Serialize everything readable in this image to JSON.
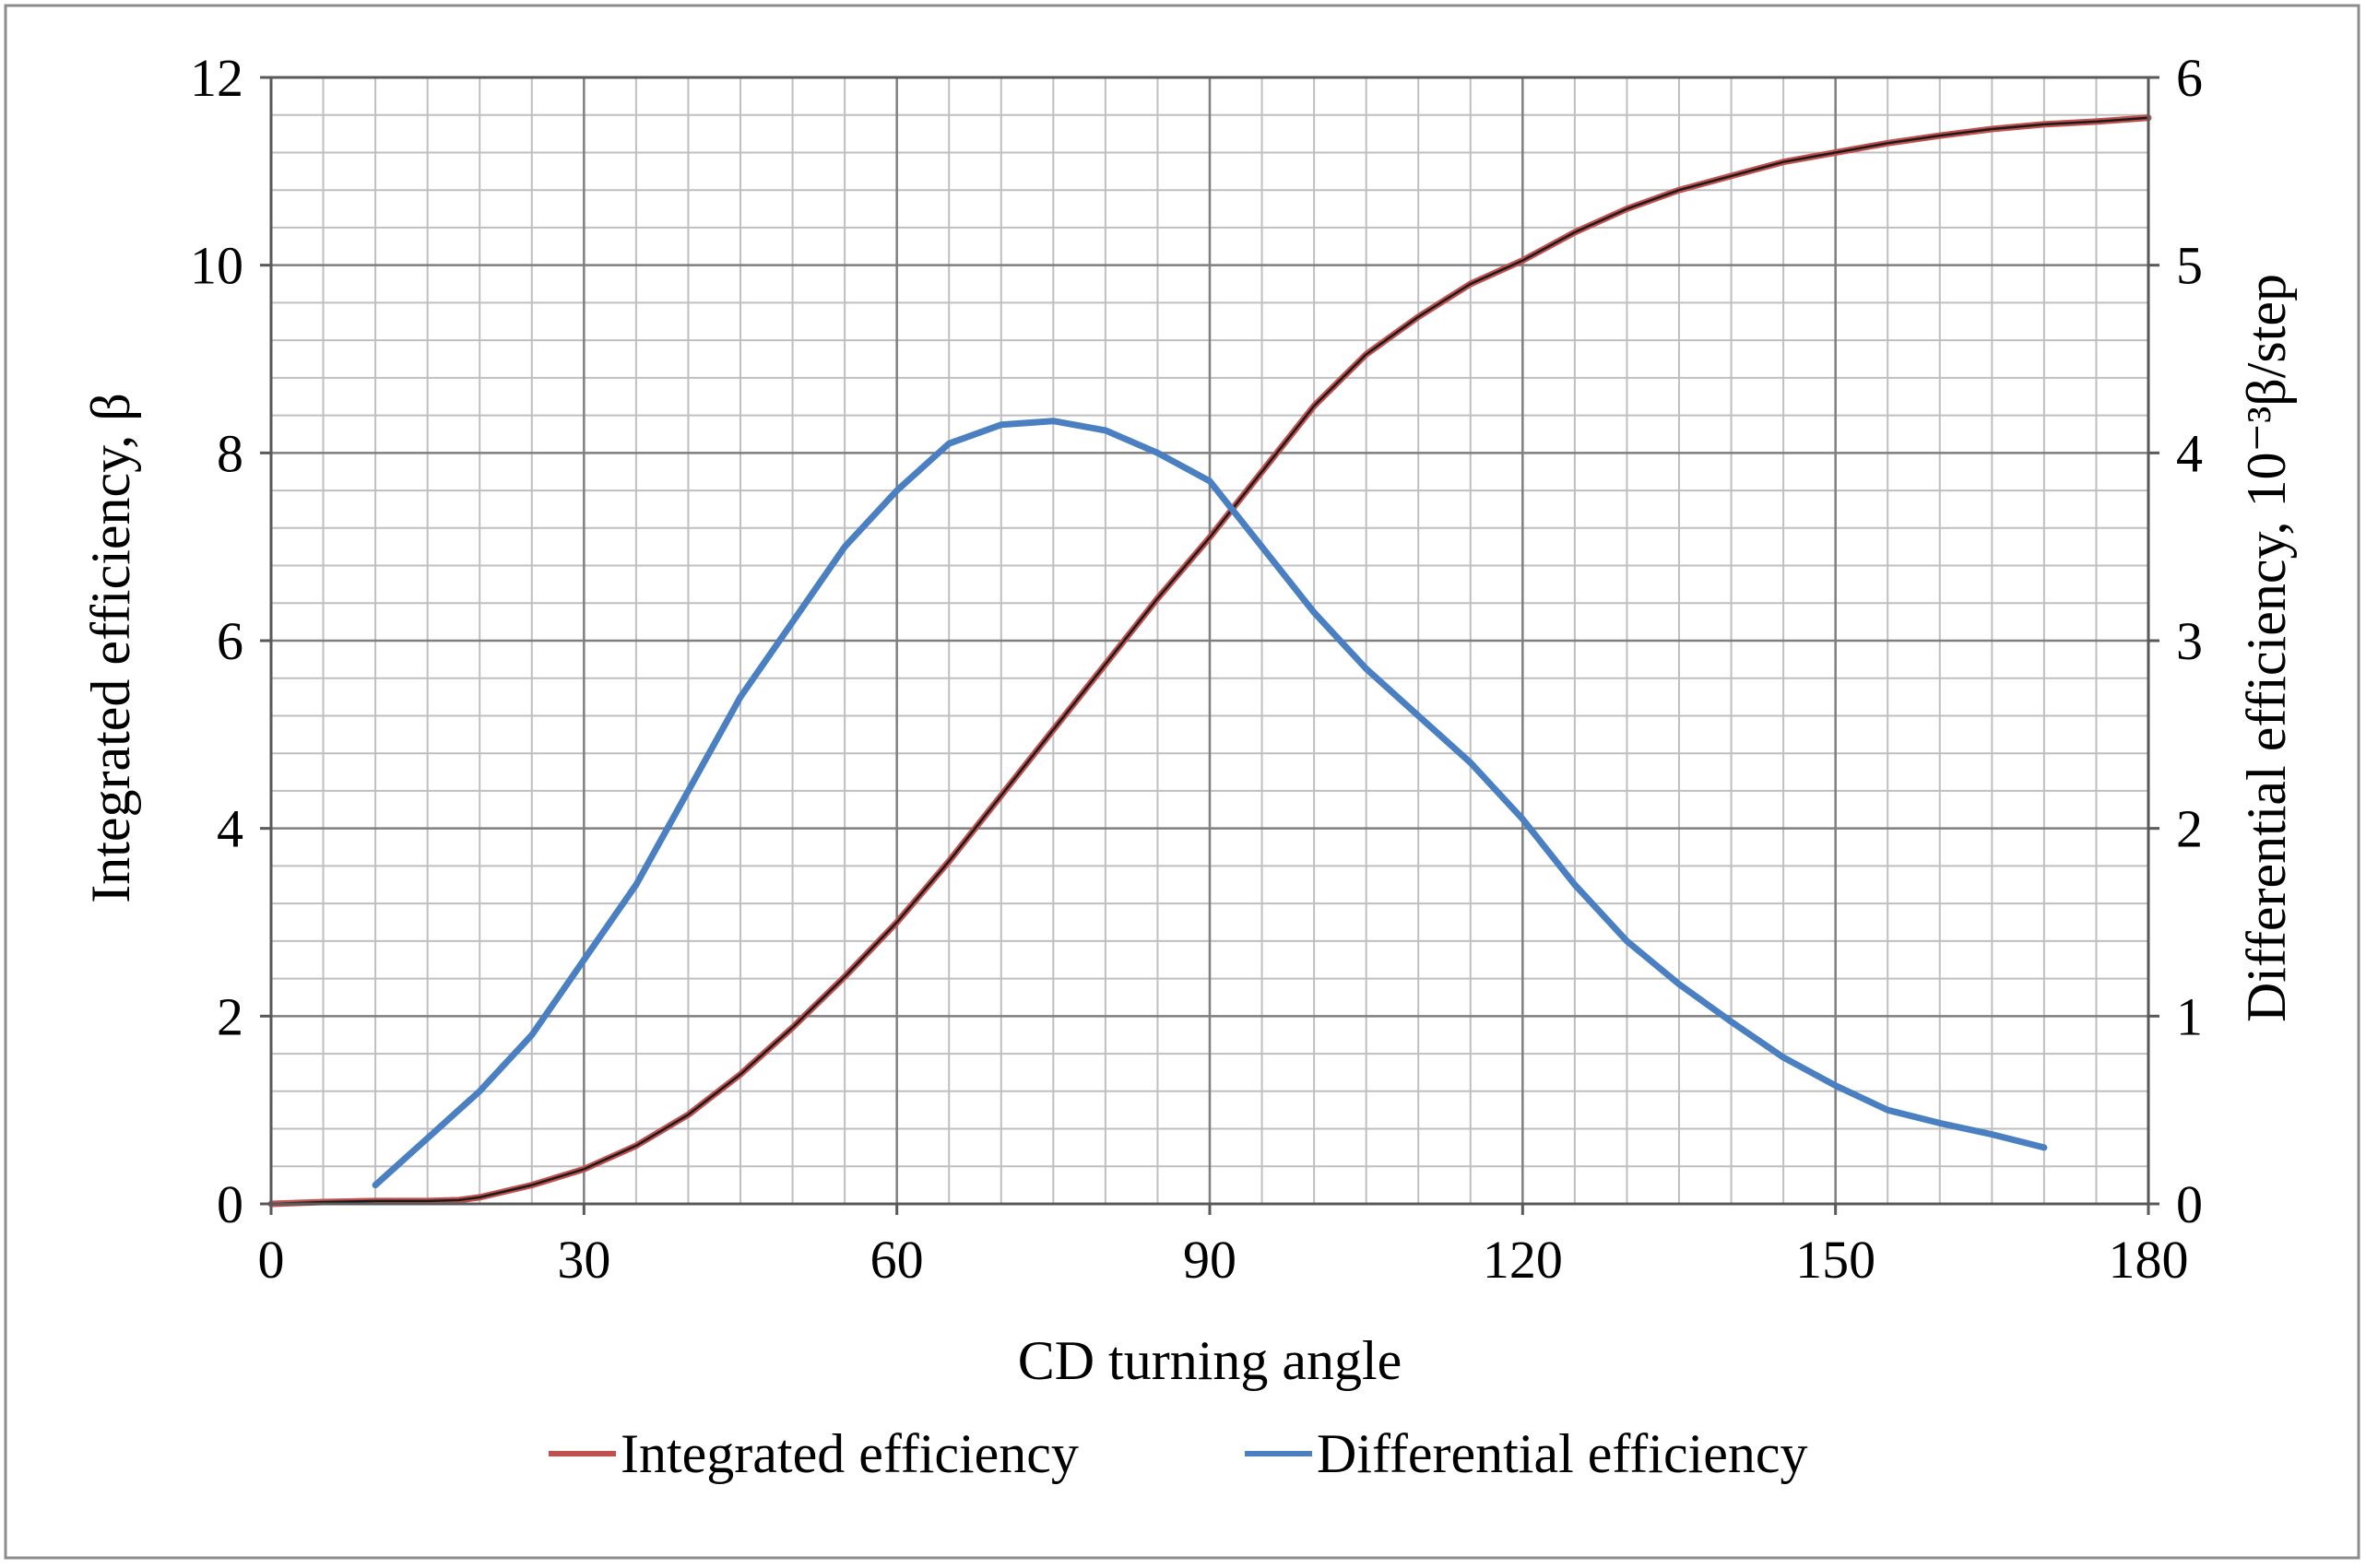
{
  "chart_data": {
    "type": "line",
    "title": "",
    "xlabel": "CD turning angle",
    "ylabel_left": "Integrated efficiency, β",
    "ylabel_right": "Differential efficiency, 10⁻³β/step",
    "xlim": [
      0,
      180
    ],
    "ylim_left": [
      0,
      12
    ],
    "ylim_right": [
      0,
      6
    ],
    "x_ticks": [
      0,
      30,
      60,
      90,
      120,
      150,
      180
    ],
    "y_left_ticks": [
      0,
      2,
      4,
      6,
      8,
      10,
      12
    ],
    "y_right_ticks": [
      0,
      1,
      2,
      3,
      4,
      5,
      6
    ],
    "x_ticks_text": [
      "0",
      "30",
      "60",
      "90",
      "120",
      "150",
      "180"
    ],
    "y_left_ticks_text": [
      "0",
      "2",
      "4",
      "6",
      "8",
      "10",
      "12"
    ],
    "y_right_ticks_text": [
      "0",
      "1",
      "2",
      "3",
      "4",
      "5",
      "6"
    ],
    "minor_grid_step_x": 5,
    "minor_grid_step_y": 0.4,
    "grid": true,
    "legend_position": "bottom",
    "series": [
      {
        "name": "Integrated efficiency",
        "axis": "left",
        "color": "#c0504d",
        "x": [
          0,
          5,
          10,
          15,
          18,
          20,
          25,
          30,
          35,
          40,
          45,
          50,
          55,
          60,
          65,
          70,
          75,
          80,
          85,
          90,
          95,
          100,
          105,
          110,
          115,
          120,
          125,
          130,
          135,
          140,
          145,
          150,
          155,
          160,
          165,
          170,
          175,
          180
        ],
        "y": [
          0,
          0.02,
          0.03,
          0.03,
          0.04,
          0.07,
          0.2,
          0.37,
          0.62,
          0.95,
          1.38,
          1.88,
          2.42,
          3.0,
          3.65,
          4.35,
          5.05,
          5.75,
          6.45,
          7.1,
          7.8,
          8.5,
          9.05,
          9.45,
          9.8,
          10.05,
          10.35,
          10.6,
          10.8,
          10.95,
          11.1,
          11.2,
          11.3,
          11.38,
          11.45,
          11.5,
          11.53,
          11.57
        ]
      },
      {
        "name": "Differential efficiency",
        "axis": "right",
        "color": "#4a7fc1",
        "x": [
          10,
          15,
          20,
          25,
          30,
          35,
          40,
          45,
          50,
          55,
          60,
          65,
          70,
          75,
          80,
          85,
          90,
          95,
          100,
          105,
          110,
          115,
          120,
          125,
          130,
          135,
          140,
          145,
          150,
          155,
          160,
          165,
          170
        ],
        "y": [
          0.1,
          0.35,
          0.6,
          0.9,
          1.3,
          1.7,
          2.2,
          2.7,
          3.1,
          3.5,
          3.8,
          4.05,
          4.15,
          4.17,
          4.12,
          4.0,
          3.85,
          3.5,
          3.15,
          2.85,
          2.6,
          2.35,
          2.05,
          1.7,
          1.4,
          1.17,
          0.97,
          0.78,
          0.63,
          0.5,
          0.43,
          0.37,
          0.3
        ]
      }
    ]
  }
}
